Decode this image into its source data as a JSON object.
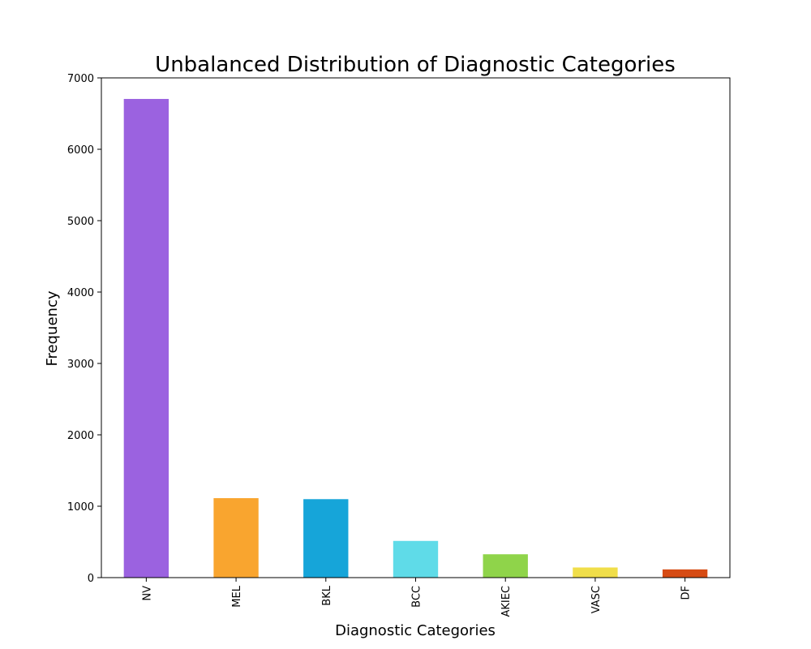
{
  "chart_data": {
    "type": "bar",
    "title": "Unbalanced Distribution of Diagnostic Categories",
    "xlabel": "Diagnostic Categories",
    "ylabel": "Frequency",
    "categories": [
      "NV",
      "MEL",
      "BKL",
      "BCC",
      "AKIEC",
      "VASC",
      "DF"
    ],
    "values": [
      6705,
      1113,
      1099,
      514,
      327,
      142,
      115
    ],
    "colors": [
      "#9b62e0",
      "#f9a52f",
      "#16a5d9",
      "#5fdbe8",
      "#8fd44a",
      "#f0de4a",
      "#d64b14"
    ],
    "ylim": [
      0,
      7000
    ],
    "yticks": [
      0,
      1000,
      2000,
      3000,
      4000,
      5000,
      6000,
      7000
    ],
    "grid": false,
    "legend": "none"
  }
}
